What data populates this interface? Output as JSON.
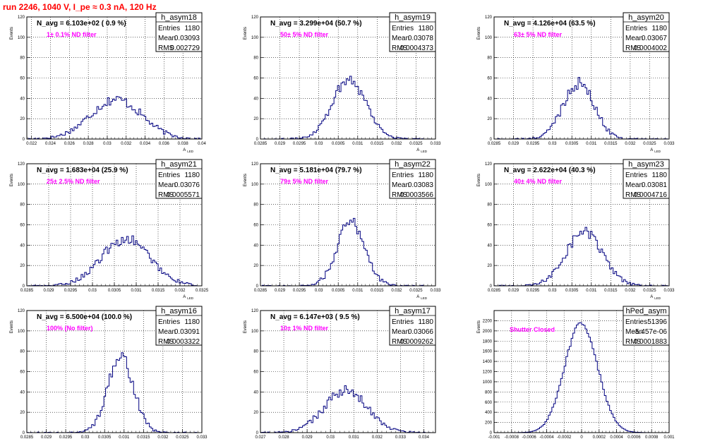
{
  "page_title": "run 2246,  1040 V, I_pe ≈ 0.3 nA, 120 Hz",
  "colors": {
    "title": "#ff0000",
    "filter_label": "#ff00ff",
    "histogram": "#000080",
    "grid": "#000000"
  },
  "chart_data": [
    {
      "type": "bar",
      "style": "step-histogram",
      "grid": true,
      "ylabel": "Events",
      "xlabel": "A_LED",
      "stats_name": "h_asym18",
      "stats": [
        [
          "Entries",
          "1180"
        ],
        [
          "Mean",
          "0.03093"
        ],
        [
          "RMS",
          "0.002729"
        ]
      ],
      "n_avg_label": "N_avg = 6.103e+02 ( 0.9 %)",
      "filter_label": "1± 0.1% ND filter",
      "xlim": [
        0.0215,
        0.04
      ],
      "ylim": [
        0,
        120
      ],
      "x_ticks": [
        "0.022",
        "0.024",
        "0.026",
        "0.028",
        "0.03",
        "0.032",
        "0.034",
        "0.036",
        "0.038",
        "0.04"
      ],
      "x_tick_values": [
        0.022,
        0.024,
        0.026,
        0.028,
        0.03,
        0.032,
        0.034,
        0.036,
        0.038,
        0.04
      ],
      "y_ticks": [
        "0",
        "20",
        "40",
        "60",
        "80",
        "100",
        "120"
      ],
      "mean": 0.03093,
      "rms": 0.002729,
      "peak": 39,
      "bins": 100
    },
    {
      "type": "bar",
      "style": "step-histogram",
      "grid": true,
      "ylabel": "Events",
      "xlabel": "A_LED",
      "stats_name": "h_asym19",
      "stats": [
        [
          "Entries",
          "1180"
        ],
        [
          "Mean",
          "0.03078"
        ],
        [
          "RMS",
          "0.0004373"
        ]
      ],
      "n_avg_label": "N_avg = 3.299e+04 (50.7 %)",
      "filter_label": "50± 5% ND filter",
      "xlim": [
        0.0285,
        0.033
      ],
      "ylim": [
        0,
        120
      ],
      "x_ticks": [
        "0.0285",
        "0.029",
        "0.0295",
        "0.03",
        "0.0305",
        "0.031",
        "0.0315",
        "0.032",
        "0.0325",
        "0.033"
      ],
      "x_tick_values": [
        0.0285,
        0.029,
        0.0295,
        0.03,
        0.0305,
        0.031,
        0.0315,
        0.032,
        0.0325,
        0.033
      ],
      "y_ticks": [
        "0",
        "20",
        "40",
        "60",
        "80",
        "100",
        "120"
      ],
      "mean": 0.03078,
      "rms": 0.0004373,
      "peak": 59,
      "bins": 100
    },
    {
      "type": "bar",
      "style": "step-histogram",
      "grid": true,
      "ylabel": "Events",
      "xlabel": "A_LED",
      "stats_name": "h_asym20",
      "stats": [
        [
          "Entries",
          "1180"
        ],
        [
          "Mean",
          "0.03067"
        ],
        [
          "RMS",
          "0.0004002"
        ]
      ],
      "n_avg_label": "N_avg = 4.126e+04 (63.5 %)",
      "filter_label": "63± 5% ND filter",
      "xlim": [
        0.0285,
        0.033
      ],
      "ylim": [
        0,
        120
      ],
      "x_ticks": [
        "0.0285",
        "0.029",
        "0.0295",
        "0.03",
        "0.0305",
        "0.031",
        "0.0315",
        "0.032",
        "0.0325",
        "0.033"
      ],
      "x_tick_values": [
        0.0285,
        0.029,
        0.0295,
        0.03,
        0.0305,
        0.031,
        0.0315,
        0.032,
        0.0325,
        0.033
      ],
      "y_ticks": [
        "0",
        "20",
        "40",
        "60",
        "80",
        "100",
        "120"
      ],
      "mean": 0.03067,
      "rms": 0.0004002,
      "peak": 55,
      "bins": 100
    },
    {
      "type": "bar",
      "style": "step-histogram",
      "grid": true,
      "ylabel": "Events",
      "xlabel": "A_LED",
      "stats_name": "h_asym21",
      "stats": [
        [
          "Entries",
          "1180"
        ],
        [
          "Mean",
          "0.03076"
        ],
        [
          "RMS",
          "0.0005571"
        ]
      ],
      "n_avg_label": "N_avg = 1.683e+04 (25.9 %)",
      "filter_label": "25± 2.5% ND filter",
      "xlim": [
        0.0285,
        0.0325
      ],
      "ylim": [
        0,
        120
      ],
      "x_ticks": [
        "0.0285",
        "0.029",
        "0.0295",
        "0.03",
        "0.0305",
        "0.031",
        "0.0315",
        "0.032",
        "0.0325"
      ],
      "x_tick_values": [
        0.0285,
        0.029,
        0.0295,
        0.03,
        0.0305,
        0.031,
        0.0315,
        0.032,
        0.0325
      ],
      "y_ticks": [
        "0",
        "20",
        "40",
        "60",
        "80",
        "100",
        "120"
      ],
      "mean": 0.03076,
      "rms": 0.0005571,
      "peak": 46,
      "bins": 100
    },
    {
      "type": "bar",
      "style": "step-histogram",
      "grid": true,
      "ylabel": "Events",
      "xlabel": "A_LED",
      "stats_name": "h_asym22",
      "stats": [
        [
          "Entries",
          "1180"
        ],
        [
          "Mean",
          "0.03083"
        ],
        [
          "RMS",
          "0.0003566"
        ]
      ],
      "n_avg_label": "N_avg = 5.181e+04 (79.7 %)",
      "filter_label": "79± 5% ND filter",
      "xlim": [
        0.0285,
        0.033
      ],
      "ylim": [
        0,
        120
      ],
      "x_ticks": [
        "0.0285",
        "0.029",
        "0.0295",
        "0.03",
        "0.0305",
        "0.031",
        "0.0315",
        "0.032",
        "0.0325",
        "0.033"
      ],
      "x_tick_values": [
        0.0285,
        0.029,
        0.0295,
        0.03,
        0.0305,
        0.031,
        0.0315,
        0.032,
        0.0325,
        0.033
      ],
      "y_ticks": [
        "0",
        "20",
        "40",
        "60",
        "80",
        "100",
        "120"
      ],
      "mean": 0.03083,
      "rms": 0.0003566,
      "peak": 63,
      "bins": 100
    },
    {
      "type": "bar",
      "style": "step-histogram",
      "grid": true,
      "ylabel": "Events",
      "xlabel": "A_LED",
      "stats_name": "h_asym23",
      "stats": [
        [
          "Entries",
          "1180"
        ],
        [
          "Mean",
          "0.03081"
        ],
        [
          "RMS",
          "0.0004716"
        ]
      ],
      "n_avg_label": "N_avg = 2.622e+04 (40.3 %)",
      "filter_label": "40± 4% ND filter",
      "xlim": [
        0.0285,
        0.033
      ],
      "ylim": [
        0,
        120
      ],
      "x_ticks": [
        "0.0285",
        "0.029",
        "0.0295",
        "0.03",
        "0.0305",
        "0.031",
        "0.0315",
        "0.032",
        "0.0325",
        "0.033"
      ],
      "x_tick_values": [
        0.0285,
        0.029,
        0.0295,
        0.03,
        0.0305,
        0.031,
        0.0315,
        0.032,
        0.0325,
        0.033
      ],
      "y_ticks": [
        "0",
        "20",
        "40",
        "60",
        "80",
        "100",
        "120"
      ],
      "mean": 0.03081,
      "rms": 0.0004716,
      "peak": 53,
      "bins": 100
    },
    {
      "type": "bar",
      "style": "step-histogram",
      "grid": true,
      "ylabel": "Events",
      "xlabel": "A_LED",
      "stats_name": "h_asym16",
      "stats": [
        [
          "Entries",
          "1180"
        ],
        [
          "Mean",
          "0.03091"
        ],
        [
          "RMS",
          "0.0003322"
        ]
      ],
      "n_avg_label": "N_avg = 6.500e+04 (100.0 %)",
      "filter_label": "100% (No filter)",
      "xlim": [
        0.0285,
        0.033
      ],
      "ylim": [
        0,
        120
      ],
      "x_ticks": [
        "0.0285",
        "0.029",
        "0.0295",
        "0.03",
        "0.0305",
        "0.031",
        "0.0315",
        "0.032",
        "0.0325",
        "0.033"
      ],
      "x_tick_values": [
        0.0285,
        0.029,
        0.0295,
        0.03,
        0.0305,
        0.031,
        0.0315,
        0.032,
        0.0325,
        0.033
      ],
      "y_ticks": [
        "0",
        "20",
        "40",
        "60",
        "80",
        "100",
        "120"
      ],
      "mean": 0.03091,
      "rms": 0.0003322,
      "peak": 74,
      "bins": 100
    },
    {
      "type": "bar",
      "style": "step-histogram",
      "grid": true,
      "ylabel": "Events",
      "xlabel": "A_LED",
      "stats_name": "h_asym17",
      "stats": [
        [
          "Entries",
          "1180"
        ],
        [
          "Mean",
          "0.03066"
        ],
        [
          "RMS",
          "0.0009262"
        ]
      ],
      "n_avg_label": "N_avg = 6.147e+03 ( 9.5 %)",
      "filter_label": "10± 1% ND filter",
      "xlim": [
        0.027,
        0.0345
      ],
      "ylim": [
        0,
        120
      ],
      "x_ticks": [
        "0.027",
        "0.028",
        "0.029",
        "0.03",
        "0.031",
        "0.032",
        "0.033",
        "0.034"
      ],
      "x_tick_values": [
        0.027,
        0.028,
        0.029,
        0.03,
        0.031,
        0.032,
        0.033,
        0.034
      ],
      "y_ticks": [
        "0",
        "20",
        "40",
        "60",
        "80",
        "100",
        "120"
      ],
      "mean": 0.03066,
      "rms": 0.0009262,
      "peak": 41,
      "bins": 100
    },
    {
      "type": "bar",
      "style": "step-histogram",
      "grid": true,
      "ylabel": "Events",
      "xlabel": "",
      "stats_name": "hPed_asym",
      "stats": [
        [
          "Entries",
          "51396"
        ],
        [
          "Mean",
          "-5.457e-06"
        ],
        [
          "RMS",
          "0.0001883"
        ]
      ],
      "n_avg_label": "",
      "filter_label": "Shutter Closed",
      "xlim": [
        -0.001,
        0.001
      ],
      "ylim": [
        0,
        2400
      ],
      "x_ticks": [
        "-0.001",
        "-0.0008",
        "-0.0006",
        "-0.0004",
        "-0.0002",
        "0",
        "0.0002",
        "0.0004",
        "0.0006",
        "0.0008",
        "0.001"
      ],
      "x_tick_values": [
        -0.001,
        -0.0008,
        -0.0006,
        -0.0004,
        -0.0002,
        0,
        0.0002,
        0.0004,
        0.0006,
        0.0008,
        0.001
      ],
      "y_ticks": [
        "0",
        "200",
        "400",
        "600",
        "800",
        "1000",
        "1200",
        "1400",
        "1600",
        "1800",
        "2000",
        "2200"
      ],
      "y_tick_values": [
        0,
        200,
        400,
        600,
        800,
        1000,
        1200,
        1400,
        1600,
        1800,
        2000,
        2200
      ],
      "mean": -5.457e-06,
      "rms": 0.0001883,
      "peak": 2150,
      "bins": 100
    }
  ]
}
